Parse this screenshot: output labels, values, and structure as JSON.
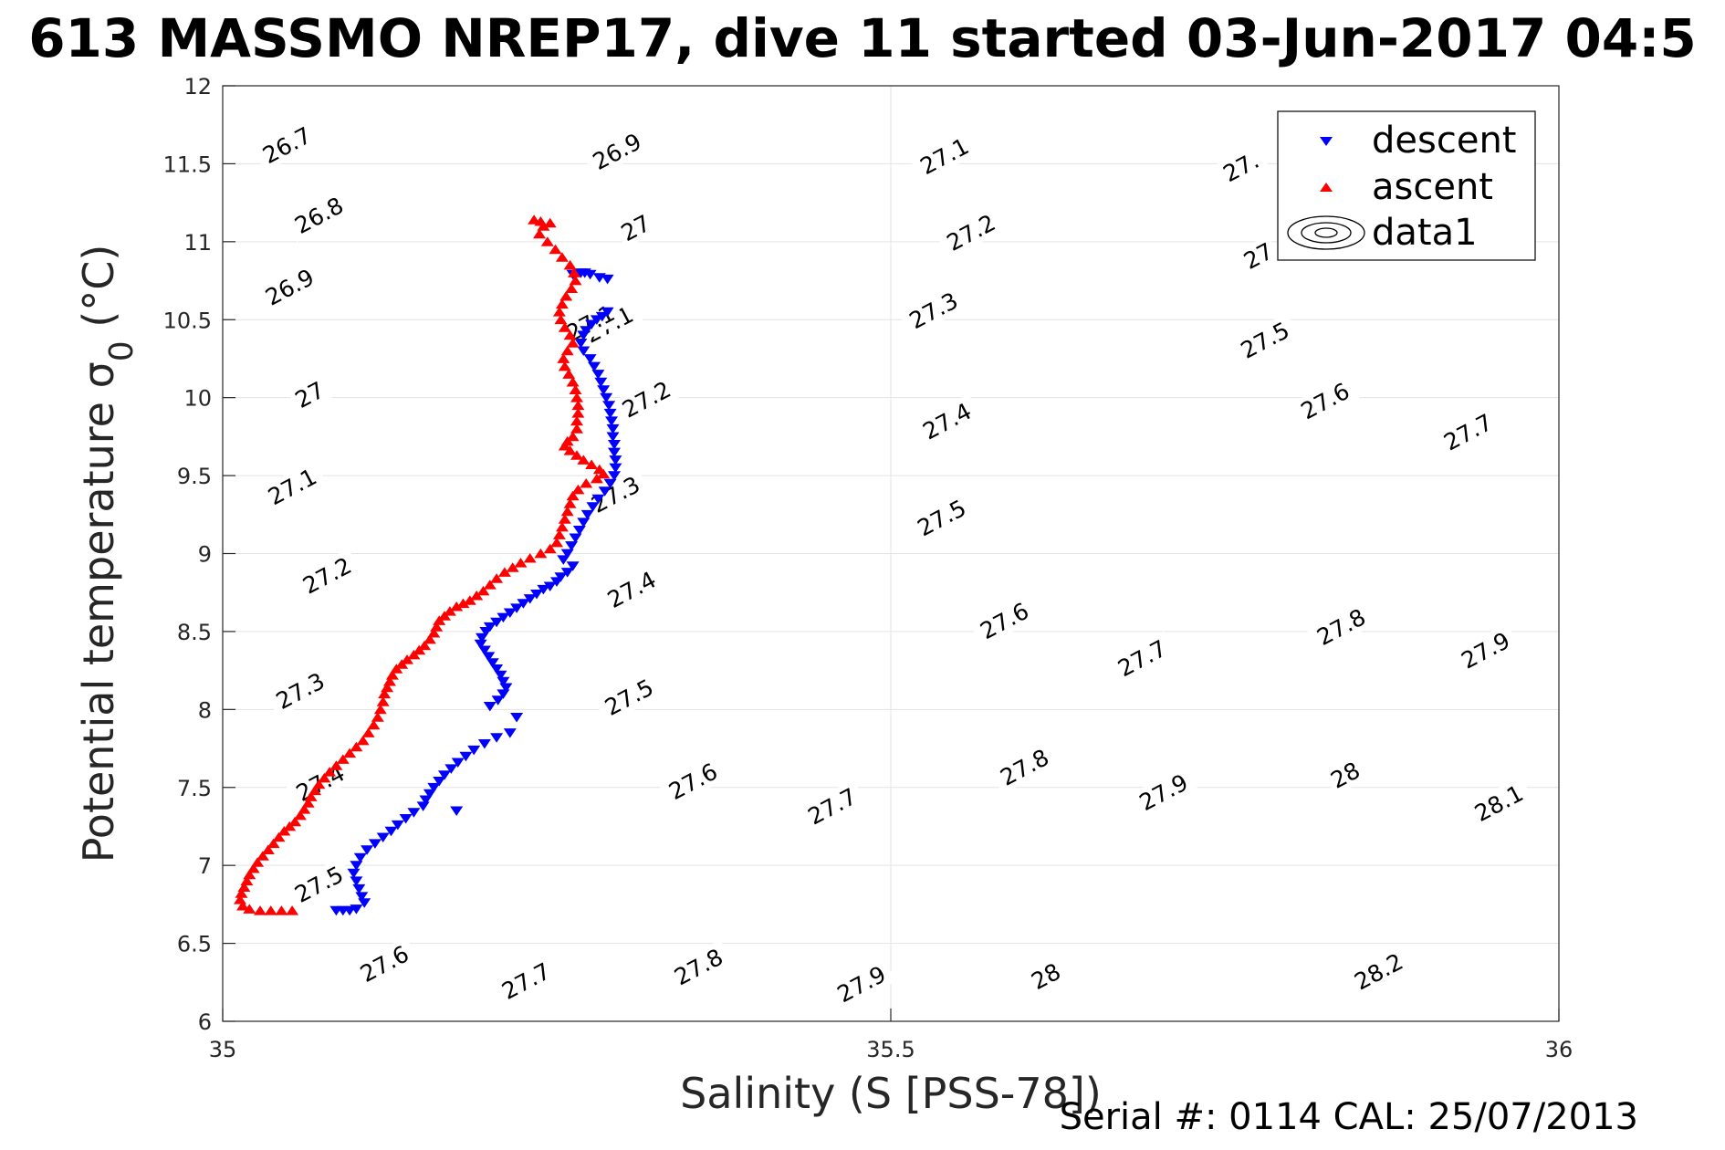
{
  "chart_data": {
    "type": "scatter",
    "title": "613 MASSMO NREP17, dive 11 started 03-Jun-2017 04:5",
    "xlabel": "Salinity (S [PSS-78])",
    "ylabel": "Potential temperature σ",
    "ylabel_sub": "0",
    "ylabel_unit": " (°C)",
    "xlim": [
      35,
      36
    ],
    "ylim": [
      6,
      12
    ],
    "x_ticks": [
      35,
      35.5,
      36
    ],
    "x_tick_labels": [
      "35",
      "35.5",
      "36"
    ],
    "y_ticks": [
      6,
      6.5,
      7,
      7.5,
      8,
      8.5,
      9,
      9.5,
      10,
      10.5,
      11,
      11.5,
      12
    ],
    "y_tick_labels": [
      "6",
      "6.5",
      "7",
      "7.5",
      "8",
      "8.5",
      "9",
      "9.5",
      "10",
      "10.5",
      "11",
      "11.5",
      "12"
    ],
    "grid": true,
    "legend_position": "top-right",
    "legend": [
      {
        "name": "descent",
        "marker": "triangle-down",
        "color": "#0000ff"
      },
      {
        "name": "ascent",
        "marker": "triangle-up",
        "color": "#ff0000"
      },
      {
        "name": "data1",
        "marker": "contour",
        "color": "#000000"
      }
    ],
    "contours": {
      "levels": [
        26.7,
        26.8,
        26.9,
        27,
        27.1,
        27.2,
        27.3,
        27.4,
        27.5,
        27.6,
        27.7,
        27.8,
        27.9,
        28,
        28.1,
        28.2
      ],
      "labels": [
        {
          "text": "26.7",
          "s": 35.048,
          "t": 11.62
        },
        {
          "text": "26.8",
          "s": 35.072,
          "t": 11.17
        },
        {
          "text": "26.9",
          "s": 35.05,
          "t": 10.71
        },
        {
          "text": "27",
          "s": 35.065,
          "t": 10.02
        },
        {
          "text": "27.1",
          "s": 35.052,
          "t": 9.43
        },
        {
          "text": "27.2",
          "s": 35.078,
          "t": 8.86
        },
        {
          "text": "27.3",
          "s": 35.058,
          "t": 8.12
        },
        {
          "text": "27.4",
          "s": 35.073,
          "t": 7.53
        },
        {
          "text": "27.5",
          "s": 35.072,
          "t": 6.88
        },
        {
          "text": "27.6",
          "s": 35.121,
          "t": 6.37
        },
        {
          "text": "26.9",
          "s": 35.295,
          "t": 11.58
        },
        {
          "text": "27",
          "s": 35.309,
          "t": 11.09
        },
        {
          "text": "27.1",
          "s": 35.289,
          "t": 10.47
        },
        {
          "text": "27.2",
          "s": 35.317,
          "t": 9.99
        },
        {
          "text": "27.3",
          "s": 35.294,
          "t": 9.38
        },
        {
          "text": "27.4",
          "s": 35.306,
          "t": 8.77
        },
        {
          "text": "27.5",
          "s": 35.304,
          "t": 8.08
        },
        {
          "text": "27.6",
          "s": 35.352,
          "t": 7.54
        },
        {
          "text": "27.7",
          "s": 35.456,
          "t": 7.38
        },
        {
          "text": "27.8",
          "s": 35.356,
          "t": 6.35
        },
        {
          "text": "27.7",
          "s": 35.227,
          "t": 6.26
        },
        {
          "text": "27.1",
          "s": 35.54,
          "t": 11.55
        },
        {
          "text": "27.2",
          "s": 35.56,
          "t": 11.06
        },
        {
          "text": "27.3",
          "s": 35.532,
          "t": 10.56
        },
        {
          "text": "27.4",
          "s": 35.542,
          "t": 9.85
        },
        {
          "text": "27.5",
          "s": 35.538,
          "t": 9.23
        },
        {
          "text": "27.6",
          "s": 35.585,
          "t": 8.57
        },
        {
          "text": "27.7",
          "s": 35.688,
          "t": 8.33
        },
        {
          "text": "27.8",
          "s": 35.6,
          "t": 7.63
        },
        {
          "text": "27.9",
          "s": 35.704,
          "t": 7.47
        },
        {
          "text": "27.9",
          "s": 35.478,
          "t": 6.24
        },
        {
          "text": "28",
          "s": 35.616,
          "t": 6.29
        },
        {
          "text": "27.",
          "s": 35.762,
          "t": 11.48
        },
        {
          "text": "27",
          "s": 35.775,
          "t": 10.91
        },
        {
          "text": "27.5",
          "s": 35.78,
          "t": 10.37
        },
        {
          "text": "27.6",
          "s": 35.825,
          "t": 9.98
        },
        {
          "text": "27.7",
          "s": 35.932,
          "t": 9.78
        },
        {
          "text": "27.8",
          "s": 35.837,
          "t": 8.53
        },
        {
          "text": "27.9",
          "s": 35.945,
          "t": 8.38
        },
        {
          "text": "28",
          "s": 35.84,
          "t": 7.58
        },
        {
          "text": "28.1",
          "s": 35.955,
          "t": 7.4
        },
        {
          "text": "28.2",
          "s": 35.865,
          "t": 6.32
        },
        {
          "text": "27.1",
          "s": 35.275,
          "t": 10.48
        }
      ]
    },
    "series": [
      {
        "name": "descent",
        "color": "#0000ff",
        "marker": "triangle-down",
        "points": [
          [
            35.271,
            10.8
          ],
          [
            35.275,
            10.79
          ],
          [
            35.262,
            10.79
          ],
          [
            35.268,
            10.8
          ],
          [
            35.282,
            10.77
          ],
          [
            35.288,
            10.76
          ],
          [
            35.288,
            10.55
          ],
          [
            35.284,
            10.52
          ],
          [
            35.28,
            10.5
          ],
          [
            35.276,
            10.47
          ],
          [
            35.272,
            10.43
          ],
          [
            35.27,
            10.4
          ],
          [
            35.268,
            10.35
          ],
          [
            35.27,
            10.3
          ],
          [
            35.275,
            10.25
          ],
          [
            35.278,
            10.2
          ],
          [
            35.281,
            10.15
          ],
          [
            35.283,
            10.1
          ],
          [
            35.285,
            10.05
          ],
          [
            35.287,
            10.0
          ],
          [
            35.289,
            9.95
          ],
          [
            35.29,
            9.9
          ],
          [
            35.291,
            9.85
          ],
          [
            35.292,
            9.8
          ],
          [
            35.292,
            9.75
          ],
          [
            35.293,
            9.7
          ],
          [
            35.293,
            9.65
          ],
          [
            35.294,
            9.6
          ],
          [
            35.294,
            9.55
          ],
          [
            35.293,
            9.5
          ],
          [
            35.29,
            9.45
          ],
          [
            35.286,
            9.4
          ],
          [
            35.281,
            9.35
          ],
          [
            35.277,
            9.3
          ],
          [
            35.273,
            9.25
          ],
          [
            35.27,
            9.2
          ],
          [
            35.267,
            9.15
          ],
          [
            35.264,
            9.1
          ],
          [
            35.261,
            9.05
          ],
          [
            35.258,
            9.0
          ],
          [
            35.255,
            8.96
          ],
          [
            35.262,
            8.92
          ],
          [
            35.258,
            8.88
          ],
          [
            35.253,
            8.85
          ],
          [
            35.25,
            8.82
          ],
          [
            35.245,
            8.79
          ],
          [
            35.24,
            8.77
          ],
          [
            35.235,
            8.74
          ],
          [
            35.23,
            8.71
          ],
          [
            35.225,
            8.68
          ],
          [
            35.22,
            8.65
          ],
          [
            35.215,
            8.62
          ],
          [
            35.21,
            8.59
          ],
          [
            35.205,
            8.56
          ],
          [
            35.2,
            8.53
          ],
          [
            35.197,
            8.5
          ],
          [
            35.194,
            8.46
          ],
          [
            35.193,
            8.42
          ],
          [
            35.196,
            8.38
          ],
          [
            35.199,
            8.34
          ],
          [
            35.202,
            8.3
          ],
          [
            35.205,
            8.26
          ],
          [
            35.208,
            8.22
          ],
          [
            35.21,
            8.18
          ],
          [
            35.212,
            8.14
          ],
          [
            35.21,
            8.1
          ],
          [
            35.206,
            8.06
          ],
          [
            35.2,
            8.02
          ],
          [
            35.22,
            7.95
          ],
          [
            35.215,
            7.85
          ],
          [
            35.205,
            7.82
          ],
          [
            35.196,
            7.78
          ],
          [
            35.188,
            7.74
          ],
          [
            35.182,
            7.7
          ],
          [
            35.176,
            7.66
          ],
          [
            35.171,
            7.62
          ],
          [
            35.166,
            7.58
          ],
          [
            35.162,
            7.54
          ],
          [
            35.158,
            7.5
          ],
          [
            35.155,
            7.46
          ],
          [
            35.152,
            7.42
          ],
          [
            35.175,
            7.35
          ],
          [
            35.15,
            7.38
          ],
          [
            35.143,
            7.34
          ],
          [
            35.137,
            7.3
          ],
          [
            35.131,
            7.26
          ],
          [
            35.126,
            7.22
          ],
          [
            35.12,
            7.18
          ],
          [
            35.114,
            7.14
          ],
          [
            35.108,
            7.1
          ],
          [
            35.103,
            7.05
          ],
          [
            35.1,
            7.0
          ],
          [
            35.098,
            6.95
          ],
          [
            35.1,
            6.9
          ],
          [
            35.102,
            6.85
          ],
          [
            35.104,
            6.8
          ],
          [
            35.106,
            6.76
          ],
          [
            35.1,
            6.72
          ],
          [
            35.095,
            6.71
          ],
          [
            35.09,
            6.71
          ],
          [
            35.085,
            6.71
          ]
        ]
      },
      {
        "name": "ascent",
        "color": "#ff0000",
        "marker": "triangle-up",
        "points": [
          [
            35.245,
            11.12
          ],
          [
            35.238,
            11.13
          ],
          [
            35.233,
            11.14
          ],
          [
            35.24,
            11.1
          ],
          [
            35.237,
            11.05
          ],
          [
            35.243,
            11.0
          ],
          [
            35.249,
            10.95
          ],
          [
            35.254,
            10.9
          ],
          [
            35.26,
            10.85
          ],
          [
            35.263,
            10.8
          ],
          [
            35.264,
            10.75
          ],
          [
            35.261,
            10.7
          ],
          [
            35.257,
            10.65
          ],
          [
            35.254,
            10.6
          ],
          [
            35.252,
            10.55
          ],
          [
            35.253,
            10.5
          ],
          [
            35.256,
            10.45
          ],
          [
            35.26,
            10.4
          ],
          [
            35.262,
            10.35
          ],
          [
            35.258,
            10.3
          ],
          [
            35.255,
            10.25
          ],
          [
            35.256,
            10.2
          ],
          [
            35.259,
            10.15
          ],
          [
            35.262,
            10.1
          ],
          [
            35.264,
            10.05
          ],
          [
            35.265,
            10.0
          ],
          [
            35.266,
            9.95
          ],
          [
            35.266,
            9.9
          ],
          [
            35.265,
            9.85
          ],
          [
            35.265,
            9.8
          ],
          [
            35.262,
            9.75
          ],
          [
            35.258,
            9.72
          ],
          [
            35.256,
            9.69
          ],
          [
            35.26,
            9.66
          ],
          [
            35.265,
            9.63
          ],
          [
            35.27,
            9.6
          ],
          [
            35.276,
            9.57
          ],
          [
            35.282,
            9.54
          ],
          [
            35.285,
            9.51
          ],
          [
            35.28,
            9.48
          ],
          [
            35.272,
            9.45
          ],
          [
            35.266,
            9.41
          ],
          [
            35.262,
            9.37
          ],
          [
            35.26,
            9.32
          ],
          [
            35.258,
            9.27
          ],
          [
            35.256,
            9.22
          ],
          [
            35.254,
            9.17
          ],
          [
            35.252,
            9.12
          ],
          [
            35.25,
            9.07
          ],
          [
            35.245,
            9.03
          ],
          [
            35.238,
            9.0
          ],
          [
            35.23,
            8.97
          ],
          [
            35.223,
            8.94
          ],
          [
            35.217,
            8.91
          ],
          [
            35.211,
            8.88
          ],
          [
            35.205,
            8.84
          ],
          [
            35.2,
            8.8
          ],
          [
            35.195,
            8.76
          ],
          [
            35.19,
            8.73
          ],
          [
            35.185,
            8.7
          ],
          [
            35.18,
            8.68
          ],
          [
            35.175,
            8.66
          ],
          [
            35.17,
            8.63
          ],
          [
            35.166,
            8.6
          ],
          [
            35.162,
            8.57
          ],
          [
            35.16,
            8.53
          ],
          [
            35.158,
            8.49
          ],
          [
            35.155,
            8.45
          ],
          [
            35.151,
            8.41
          ],
          [
            35.147,
            8.38
          ],
          [
            35.143,
            8.35
          ],
          [
            35.138,
            8.32
          ],
          [
            35.134,
            8.29
          ],
          [
            35.13,
            8.26
          ],
          [
            35.127,
            8.22
          ],
          [
            35.125,
            8.18
          ],
          [
            35.123,
            8.14
          ],
          [
            35.121,
            8.1
          ],
          [
            35.12,
            8.05
          ],
          [
            35.118,
            8.0
          ],
          [
            35.116,
            7.95
          ],
          [
            35.113,
            7.9
          ],
          [
            35.109,
            7.85
          ],
          [
            35.105,
            7.8
          ],
          [
            35.1,
            7.76
          ],
          [
            35.095,
            7.72
          ],
          [
            35.09,
            7.68
          ],
          [
            35.085,
            7.64
          ],
          [
            35.08,
            7.6
          ],
          [
            35.076,
            7.56
          ],
          [
            35.072,
            7.52
          ],
          [
            35.069,
            7.48
          ],
          [
            35.066,
            7.44
          ],
          [
            35.064,
            7.4
          ],
          [
            35.061,
            7.36
          ],
          [
            35.058,
            7.32
          ],
          [
            35.054,
            7.28
          ],
          [
            35.05,
            7.25
          ],
          [
            35.046,
            7.22
          ],
          [
            35.042,
            7.18
          ],
          [
            35.038,
            7.14
          ],
          [
            35.034,
            7.1
          ],
          [
            35.03,
            7.06
          ],
          [
            35.026,
            7.02
          ],
          [
            35.023,
            6.98
          ],
          [
            35.02,
            6.94
          ],
          [
            35.018,
            6.9
          ],
          [
            35.016,
            6.86
          ],
          [
            35.014,
            6.82
          ],
          [
            35.013,
            6.78
          ],
          [
            35.015,
            6.74
          ],
          [
            35.02,
            6.72
          ],
          [
            35.028,
            6.71
          ],
          [
            35.036,
            6.71
          ],
          [
            35.044,
            6.71
          ],
          [
            35.052,
            6.71
          ]
        ]
      }
    ]
  },
  "footer": {
    "serial": "Serial #: 0114  CAL: 25/07/2013"
  }
}
